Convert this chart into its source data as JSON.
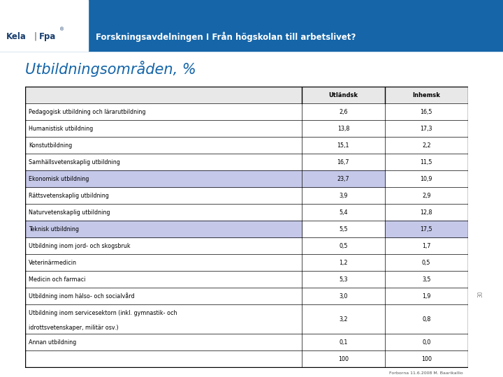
{
  "title": "Utbildningsområden, %",
  "header_title": "Forskningsavdelningen I Från högskolan till arbetslivet?",
  "col_headers": [
    "Utländsk",
    "Inhemsk"
  ],
  "rows": [
    {
      "label": "Pedagogisk utbildning och lärarutbildning",
      "utlandsk": "2,6",
      "inhemsk": "16,5",
      "hl_label": false,
      "hl_u": false,
      "hl_i": false
    },
    {
      "label": "Humanistisk utbildning",
      "utlandsk": "13,8",
      "inhemsk": "17,3",
      "hl_label": false,
      "hl_u": false,
      "hl_i": false
    },
    {
      "label": "Konstutbildning",
      "utlandsk": "15,1",
      "inhemsk": "2,2",
      "hl_label": false,
      "hl_u": false,
      "hl_i": false
    },
    {
      "label": "Samhällsvetenskaplig utbildning",
      "utlandsk": "16,7",
      "inhemsk": "11,5",
      "hl_label": false,
      "hl_u": false,
      "hl_i": false
    },
    {
      "label": "Ekonomisk utbildning",
      "utlandsk": "23,7",
      "inhemsk": "10,9",
      "hl_label": true,
      "hl_u": true,
      "hl_i": false
    },
    {
      "label": "Rättsvetenskaplig utbildning",
      "utlandsk": "3,9",
      "inhemsk": "2,9",
      "hl_label": false,
      "hl_u": false,
      "hl_i": false
    },
    {
      "label": "Naturvetenskaplig utbildning",
      "utlandsk": "5,4",
      "inhemsk": "12,8",
      "hl_label": false,
      "hl_u": false,
      "hl_i": false
    },
    {
      "label": "Teknisk utbildning",
      "utlandsk": "5,5",
      "inhemsk": "17,5",
      "hl_label": true,
      "hl_u": false,
      "hl_i": true
    },
    {
      "label": "Utbildning inom jord- och skogsbruk",
      "utlandsk": "0,5",
      "inhemsk": "1,7",
      "hl_label": false,
      "hl_u": false,
      "hl_i": false
    },
    {
      "label": "Veterinärmedicin",
      "utlandsk": "1,2",
      "inhemsk": "0,5",
      "hl_label": false,
      "hl_u": false,
      "hl_i": false
    },
    {
      "label": "Medicin och farmaci",
      "utlandsk": "5,3",
      "inhemsk": "3,5",
      "hl_label": false,
      "hl_u": false,
      "hl_i": false
    },
    {
      "label": "Utbildning inom hälso- och socialvård",
      "utlandsk": "3,0",
      "inhemsk": "1,9",
      "hl_label": false,
      "hl_u": false,
      "hl_i": false
    },
    {
      "label": "Utbildning inom servicesektorn (inkl. gymnastik- och\nidrottsvetenskaper, militär osv.)",
      "utlandsk": "3,2",
      "inhemsk": "0,8",
      "hl_label": false,
      "hl_u": false,
      "hl_i": false
    },
    {
      "label": "Annan utbildning",
      "utlandsk": "0,1",
      "inhemsk": "0,0",
      "hl_label": false,
      "hl_u": false,
      "hl_i": false
    },
    {
      "label": "",
      "utlandsk": "100",
      "inhemsk": "100",
      "hl_label": false,
      "hl_u": false,
      "hl_i": false
    }
  ],
  "bg_color": "#ffffff",
  "header_bg": "#1565a8",
  "header_text_color": "#ffffff",
  "title_color": "#1565a8",
  "table_header_bg": "#e8e8e8",
  "highlight_color": "#c5c8e8",
  "footer_text": "Forborna 11.6.2008 M. Baarikallio",
  "side_text": "30"
}
